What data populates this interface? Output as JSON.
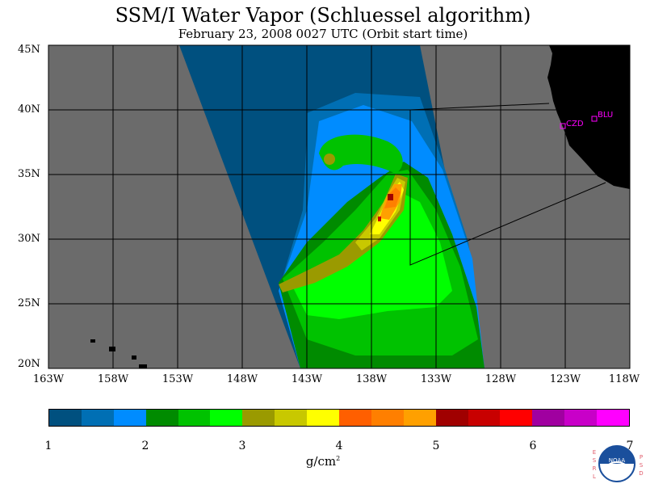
{
  "title": "SSM/I Water Vapor (Schluessel algorithm)",
  "subtitle": "February 23, 2008  0027 UTC  (Orbit start time)",
  "map": {
    "lat_labels": [
      "45N",
      "40N",
      "35N",
      "30N",
      "25N",
      "20N"
    ],
    "lon_labels": [
      "163W",
      "158W",
      "153W",
      "148W",
      "143W",
      "138W",
      "133W",
      "128W",
      "123W",
      "118W"
    ],
    "stations": [
      {
        "code": "CZD"
      },
      {
        "code": "BLU"
      }
    ],
    "colors": {
      "ocean_missing": "#6b6b6b",
      "land": "#000000",
      "station": "#ff00ff"
    }
  },
  "colorbar": {
    "colors": [
      "#00507f",
      "#006fb4",
      "#008cff",
      "#008b00",
      "#00c200",
      "#00ff00",
      "#9a9a00",
      "#c8c800",
      "#ffff00",
      "#ff5f00",
      "#ff7f00",
      "#ffa000",
      "#a00000",
      "#c80000",
      "#ff0000",
      "#a000a0",
      "#c800c8",
      "#ff00ff"
    ],
    "tick_labels": [
      "1",
      "2",
      "3",
      "4",
      "5",
      "6",
      "7"
    ],
    "unit": "g/cm",
    "unit_exp": "2"
  },
  "logo": {
    "name": "NOAA",
    "left_letters": [
      "E",
      "S",
      "R",
      "L"
    ],
    "right_letters": [
      "P",
      "S",
      "D"
    ]
  }
}
